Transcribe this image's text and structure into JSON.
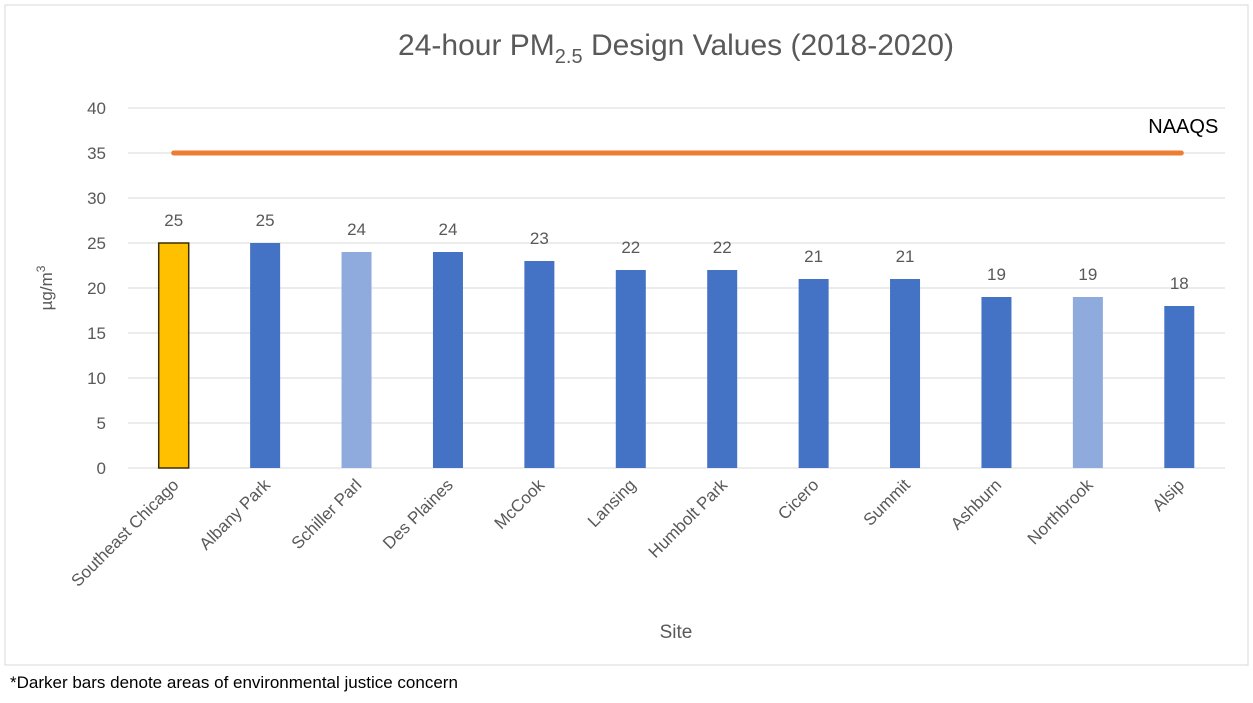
{
  "chart_data": {
    "type": "bar",
    "title": [
      "24-hour PM",
      "2.5",
      " Design Values (2018-2020)"
    ],
    "y_label": [
      "µg/m",
      "3"
    ],
    "x_label": "Site",
    "categories": [
      "Southeast Chicago",
      "Albany Park",
      "Schiller Parl",
      "Des Plaines",
      "McCook",
      "Lansing",
      "Humbolt Park",
      "Cicero",
      "Summit",
      "Ashburn",
      "Northbrook",
      "Alsip"
    ],
    "values": [
      25,
      25,
      24,
      24,
      23,
      22,
      22,
      21,
      21,
      19,
      19,
      18
    ],
    "colors": [
      "#FFC000",
      "#4472C4",
      "#8FAADC",
      "#4472C4",
      "#4472C4",
      "#4472C4",
      "#4472C4",
      "#4472C4",
      "#4472C4",
      "#4472C4",
      "#8FAADC",
      "#4472C4"
    ],
    "edgecolors": [
      "#3a2e00",
      null,
      null,
      null,
      null,
      null,
      null,
      null,
      null,
      null,
      null,
      null
    ],
    "reference_line": {
      "name": "NAAQS",
      "value": 35,
      "color": "#ED7D31"
    },
    "ylim": [
      0,
      40
    ],
    "yticks": [
      0,
      5,
      10,
      15,
      20,
      25,
      30,
      35,
      40
    ],
    "grid": true,
    "footnote": "*Darker bars denote areas of environmental justice concern"
  }
}
